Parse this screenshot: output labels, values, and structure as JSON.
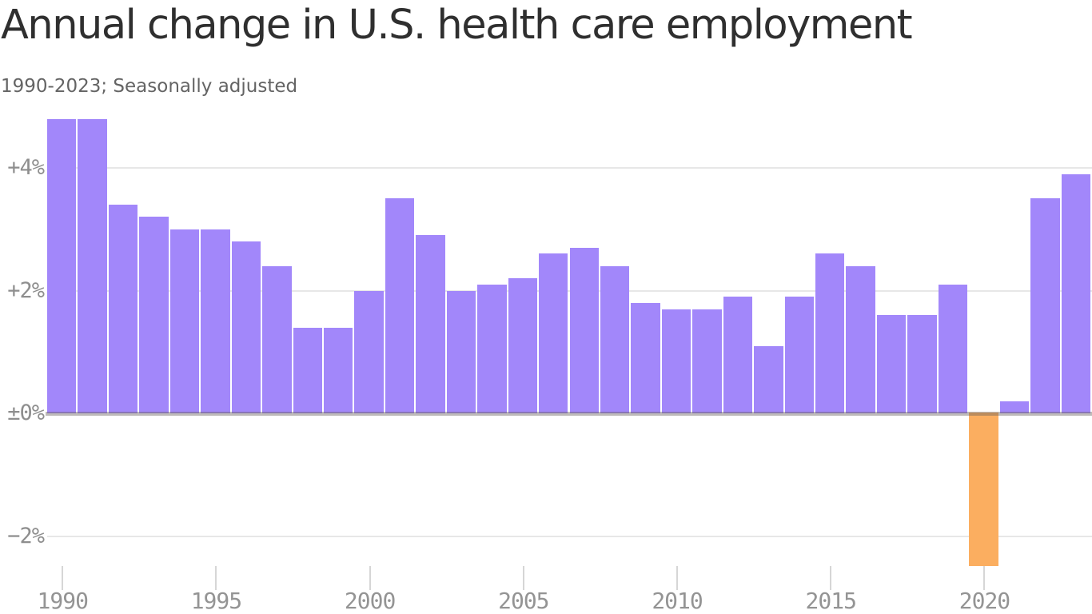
{
  "header": {
    "title": "Annual change in U.S. health care employment",
    "subtitle": "1990-2023; Seasonally adjusted"
  },
  "chart_data": {
    "type": "bar",
    "title": "Annual change in U.S. health care employment",
    "subtitle": "1990-2023; Seasonally adjusted",
    "x": [
      1990,
      1991,
      1992,
      1993,
      1994,
      1995,
      1996,
      1997,
      1998,
      1999,
      2000,
      2001,
      2002,
      2003,
      2004,
      2005,
      2006,
      2007,
      2008,
      2009,
      2010,
      2011,
      2012,
      2013,
      2014,
      2015,
      2016,
      2017,
      2018,
      2019,
      2020,
      2021,
      2022,
      2023
    ],
    "values": [
      4.8,
      4.8,
      3.4,
      3.2,
      3.0,
      3.0,
      2.8,
      2.4,
      1.4,
      1.4,
      2.0,
      3.5,
      2.9,
      2.0,
      2.1,
      2.2,
      2.6,
      2.7,
      2.4,
      1.8,
      1.7,
      1.7,
      1.9,
      1.1,
      1.9,
      2.6,
      2.4,
      1.6,
      1.6,
      2.1,
      -2.5,
      0.2,
      3.5,
      3.9
    ],
    "unit": "%",
    "highlight_year": 2020,
    "ylim": [
      -2.7,
      4.9
    ],
    "grid": true,
    "legend": "none",
    "y_axis": {
      "ticks": [
        {
          "value": 4,
          "label": "+4%"
        },
        {
          "value": 2,
          "label": "+2%"
        },
        {
          "value": 0,
          "label": "±0%"
        },
        {
          "value": -2,
          "label": "−2%"
        }
      ]
    },
    "x_axis": {
      "ticks": [
        1990,
        1995,
        2000,
        2005,
        2010,
        2015,
        2020
      ]
    },
    "colors": {
      "bar_positive": "#a287fa",
      "bar_negative": "#fbae60",
      "gridline": "#e7e7e7",
      "baseline": "rgba(99,92,89,0.42)",
      "tick": "#d6d6d6",
      "axis_text": "#8e8e8e",
      "title_text": "#2f2f2f",
      "subtitle_text": "#646464"
    }
  }
}
